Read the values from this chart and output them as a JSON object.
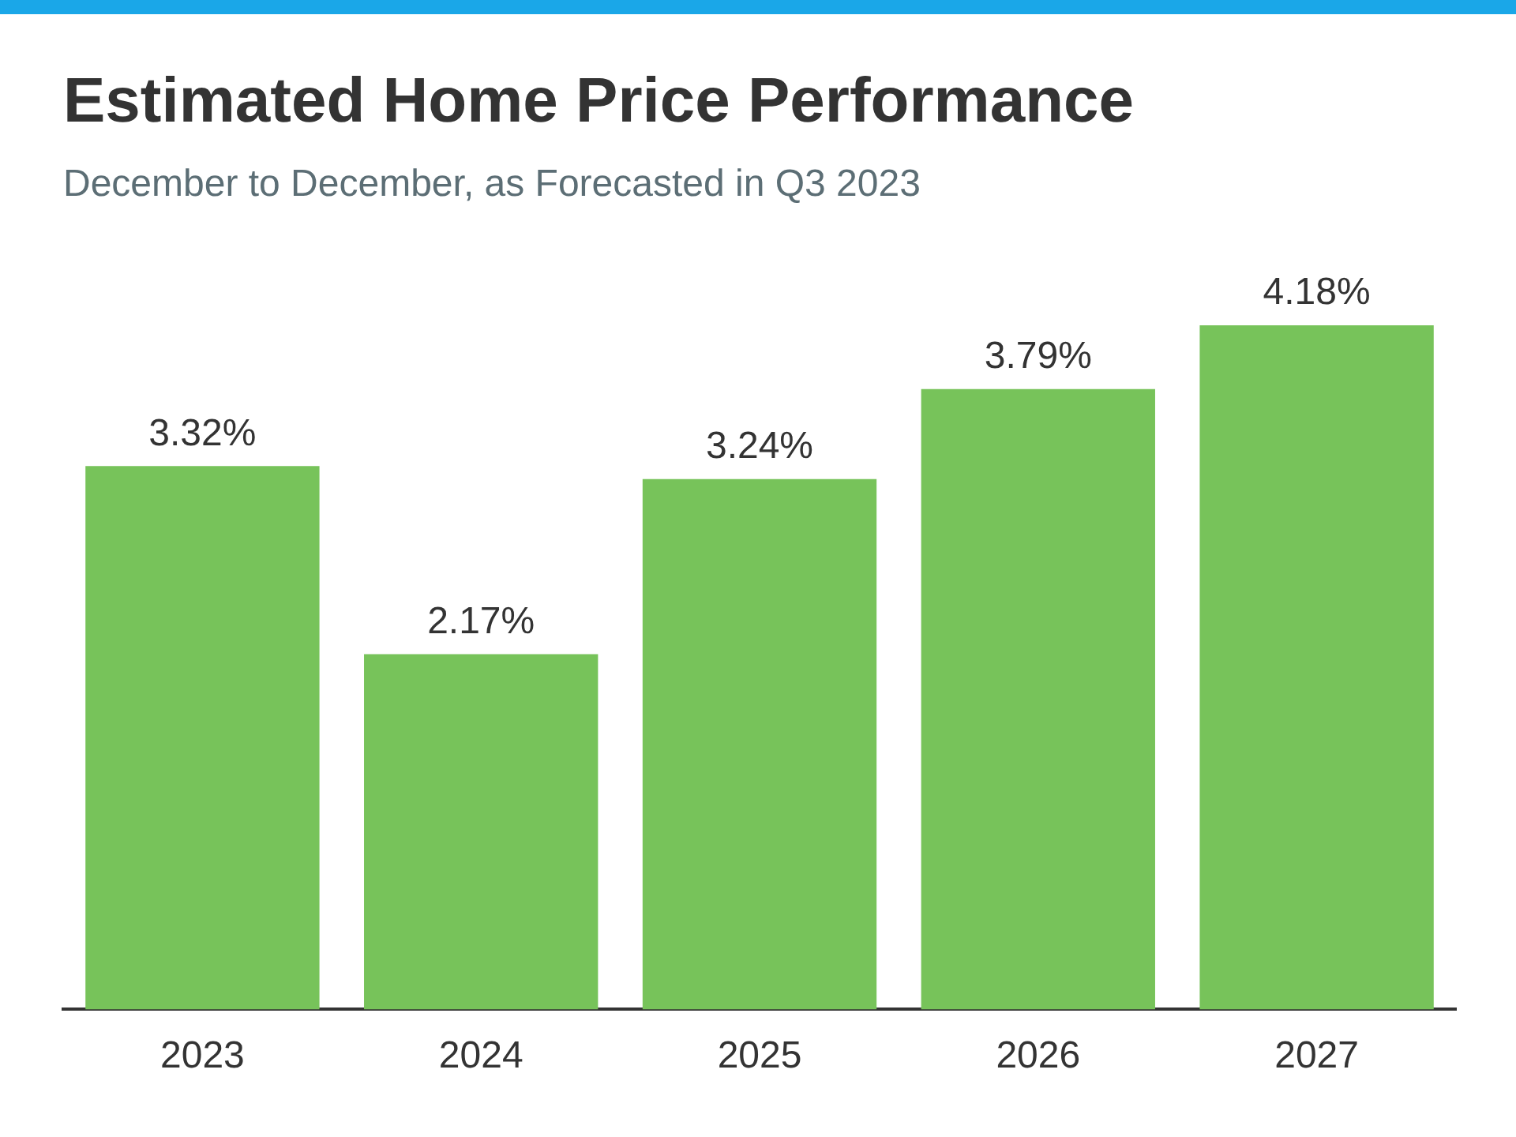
{
  "chart_data": {
    "type": "bar",
    "title": "Estimated Home Price Performance",
    "subtitle": "December to December, as Forecasted in Q3 2023",
    "categories": [
      "2023",
      "2024",
      "2025",
      "2026",
      "2027"
    ],
    "values": [
      3.32,
      2.17,
      3.24,
      3.79,
      4.18
    ],
    "value_labels": [
      "3.32%",
      "2.17%",
      "3.24%",
      "3.79%",
      "4.18%"
    ],
    "color": "#77c35a",
    "grid": false,
    "legend": false
  }
}
